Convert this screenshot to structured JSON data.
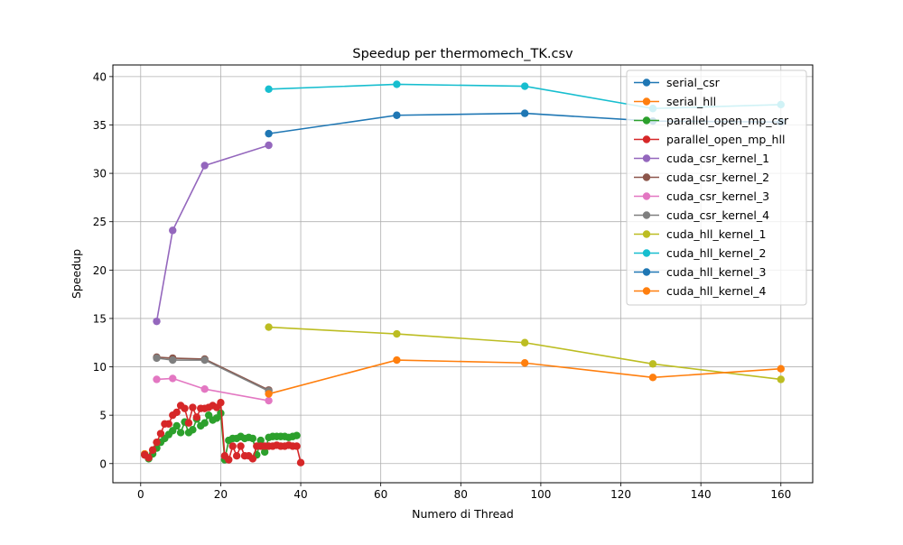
{
  "chart_data": {
    "type": "line",
    "title": "Speedup per thermomech_TK.csv",
    "xlabel": "Numero di Thread",
    "ylabel": "Speedup",
    "xlim": [
      -6.95,
      167.95
    ],
    "ylim": [
      -1.98,
      41.2
    ],
    "xticks": [
      0,
      20,
      40,
      60,
      80,
      100,
      120,
      140,
      160
    ],
    "yticks": [
      0,
      5,
      10,
      15,
      20,
      25,
      30,
      35,
      40
    ],
    "grid": true,
    "legend_position": "top-right",
    "series": [
      {
        "name": "serial_csr",
        "color": "#1f77b4",
        "points": [
          [
            1,
            0.98
          ]
        ]
      },
      {
        "name": "serial_hll",
        "color": "#ff7f0e",
        "points": [
          [
            1,
            1.0
          ]
        ]
      },
      {
        "name": "parallel_open_mp_csr",
        "color": "#2ca02c",
        "points": [
          [
            1,
            0.9
          ],
          [
            2,
            0.5
          ],
          [
            3,
            1.0
          ],
          [
            4,
            1.6
          ],
          [
            5,
            2.2
          ],
          [
            6,
            2.6
          ],
          [
            7,
            3.0
          ],
          [
            8,
            3.4
          ],
          [
            9,
            3.9
          ],
          [
            10,
            3.2
          ],
          [
            11,
            4.3
          ],
          [
            12,
            3.2
          ],
          [
            13,
            3.5
          ],
          [
            14,
            4.6
          ],
          [
            15,
            3.9
          ],
          [
            16,
            4.2
          ],
          [
            17,
            5.0
          ],
          [
            18,
            4.5
          ],
          [
            19,
            4.7
          ],
          [
            20,
            5.2
          ],
          [
            21,
            0.4
          ],
          [
            22,
            2.4
          ],
          [
            23,
            2.6
          ],
          [
            24,
            2.6
          ],
          [
            25,
            2.8
          ],
          [
            26,
            2.6
          ],
          [
            27,
            2.7
          ],
          [
            28,
            2.6
          ],
          [
            29,
            0.9
          ],
          [
            30,
            2.4
          ],
          [
            31,
            1.2
          ],
          [
            32,
            2.7
          ],
          [
            33,
            2.8
          ],
          [
            34,
            2.8
          ],
          [
            35,
            2.8
          ],
          [
            36,
            2.8
          ],
          [
            37,
            2.7
          ],
          [
            38,
            2.8
          ],
          [
            39,
            2.9
          ]
        ]
      },
      {
        "name": "parallel_open_mp_hll",
        "color": "#d62728",
        "points": [
          [
            1,
            0.9
          ],
          [
            2,
            0.6
          ],
          [
            3,
            1.4
          ],
          [
            4,
            2.2
          ],
          [
            5,
            3.1
          ],
          [
            6,
            4.1
          ],
          [
            7,
            4.1
          ],
          [
            8,
            5.0
          ],
          [
            9,
            5.3
          ],
          [
            10,
            6.0
          ],
          [
            11,
            5.7
          ],
          [
            12,
            4.2
          ],
          [
            13,
            5.8
          ],
          [
            14,
            4.8
          ],
          [
            15,
            5.7
          ],
          [
            16,
            5.7
          ],
          [
            17,
            5.8
          ],
          [
            18,
            6.0
          ],
          [
            19,
            5.8
          ],
          [
            20,
            6.3
          ],
          [
            21,
            0.8
          ],
          [
            22,
            0.4
          ],
          [
            23,
            1.8
          ],
          [
            24,
            0.8
          ],
          [
            25,
            1.8
          ],
          [
            26,
            0.8
          ],
          [
            27,
            0.8
          ],
          [
            28,
            0.5
          ],
          [
            29,
            1.8
          ],
          [
            30,
            1.8
          ],
          [
            31,
            1.8
          ],
          [
            32,
            1.8
          ],
          [
            33,
            1.8
          ],
          [
            34,
            1.9
          ],
          [
            35,
            1.8
          ],
          [
            36,
            1.8
          ],
          [
            37,
            1.9
          ],
          [
            38,
            1.8
          ],
          [
            39,
            1.8
          ],
          [
            40,
            0.1
          ]
        ]
      },
      {
        "name": "cuda_csr_kernel_1",
        "color": "#9467bd",
        "points": [
          [
            4,
            14.7
          ],
          [
            8,
            24.1
          ],
          [
            16,
            30.8
          ],
          [
            32,
            32.9
          ]
        ]
      },
      {
        "name": "cuda_csr_kernel_2",
        "color": "#8c564b",
        "points": [
          [
            4,
            11.0
          ],
          [
            8,
            10.9
          ],
          [
            16,
            10.8
          ],
          [
            32,
            7.6
          ]
        ]
      },
      {
        "name": "cuda_csr_kernel_3",
        "color": "#e377c2",
        "points": [
          [
            4,
            8.7
          ],
          [
            8,
            8.8
          ],
          [
            16,
            7.7
          ],
          [
            32,
            6.5
          ]
        ]
      },
      {
        "name": "cuda_csr_kernel_4",
        "color": "#7f7f7f",
        "points": [
          [
            4,
            10.9
          ],
          [
            8,
            10.7
          ],
          [
            16,
            10.7
          ],
          [
            32,
            7.5
          ]
        ]
      },
      {
        "name": "cuda_hll_kernel_1",
        "color": "#bcbd22",
        "points": [
          [
            32,
            14.1
          ],
          [
            64,
            13.4
          ],
          [
            96,
            12.5
          ],
          [
            128,
            10.3
          ],
          [
            160,
            8.7
          ]
        ]
      },
      {
        "name": "cuda_hll_kernel_2",
        "color": "#17becf",
        "points": [
          [
            32,
            38.7
          ],
          [
            64,
            39.2
          ],
          [
            96,
            39.0
          ],
          [
            128,
            36.7
          ],
          [
            160,
            37.1
          ]
        ]
      },
      {
        "name": "cuda_hll_kernel_3",
        "color": "#1f77b4",
        "points": [
          [
            32,
            34.1
          ],
          [
            64,
            36.0
          ],
          [
            96,
            36.2
          ],
          [
            128,
            35.4
          ],
          [
            160,
            35.3
          ]
        ]
      },
      {
        "name": "cuda_hll_kernel_4",
        "color": "#ff7f0e",
        "points": [
          [
            32,
            7.2
          ],
          [
            64,
            10.7
          ],
          [
            96,
            10.4
          ],
          [
            128,
            8.9
          ],
          [
            160,
            9.8
          ]
        ]
      }
    ]
  }
}
